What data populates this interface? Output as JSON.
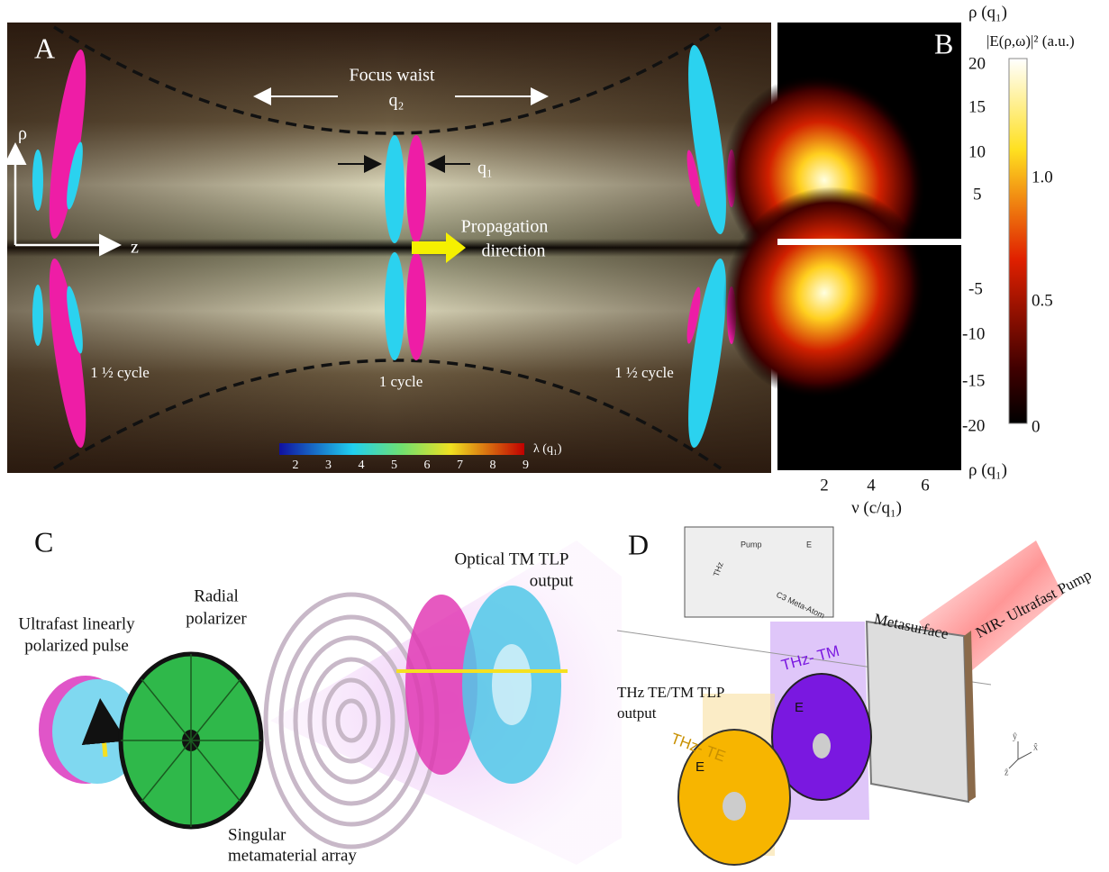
{
  "panel_a": {
    "label": "A",
    "focus_waist": "Focus waist",
    "q2": "q₂",
    "q1": "q₁",
    "rho": "ρ",
    "z": "z",
    "propagation": [
      "Propagation",
      "direction"
    ],
    "cycle_left": "1 ½ cycle",
    "cycle_center": "1 cycle",
    "cycle_right": "1 ½ cycle",
    "colorbar_ticks": [
      "2",
      "3",
      "4",
      "5",
      "6",
      "7",
      "8",
      "9"
    ],
    "colorbar_label": "λ (q₁)"
  },
  "panel_b": {
    "label": "B",
    "rho_top": "ρ (q₁)",
    "rho_bottom": "ρ (q₁)",
    "colorbar_title": "|E(ρ,ω)|² (a.u.)",
    "y_ticks_top": [
      "20",
      "15",
      "10",
      "5"
    ],
    "y_ticks_bottom": [
      "-5",
      "-10",
      "-15",
      "-20"
    ],
    "x_ticks": [
      "2",
      "4",
      "6"
    ],
    "x_label": "ν (c/q₁)",
    "colorbar_ticks": [
      "1.0",
      "0.5",
      "0"
    ]
  },
  "panel_c": {
    "label": "C",
    "pulse": [
      "Ultrafast linearly",
      "polarized pulse"
    ],
    "polarizer": [
      "Radial",
      "polarizer"
    ],
    "output": [
      "Optical TM TLP",
      "output"
    ],
    "array": [
      "Singular",
      "metamaterial array"
    ]
  },
  "panel_d": {
    "label": "D",
    "inset": {
      "thz": "THz",
      "pump": "Pump",
      "e": "E",
      "atom": "C3 Meta-Atom"
    },
    "metasurface": "Metasurface",
    "nir": "NIR- Ultrafast Pump",
    "output": [
      "THz TE/TM TLP",
      "output"
    ],
    "tm": "THz- TM",
    "te": "THz- TE",
    "tm_e": "E",
    "te_e": "E",
    "axes": [
      "ŷ",
      "x̂",
      "ẑ"
    ]
  }
}
